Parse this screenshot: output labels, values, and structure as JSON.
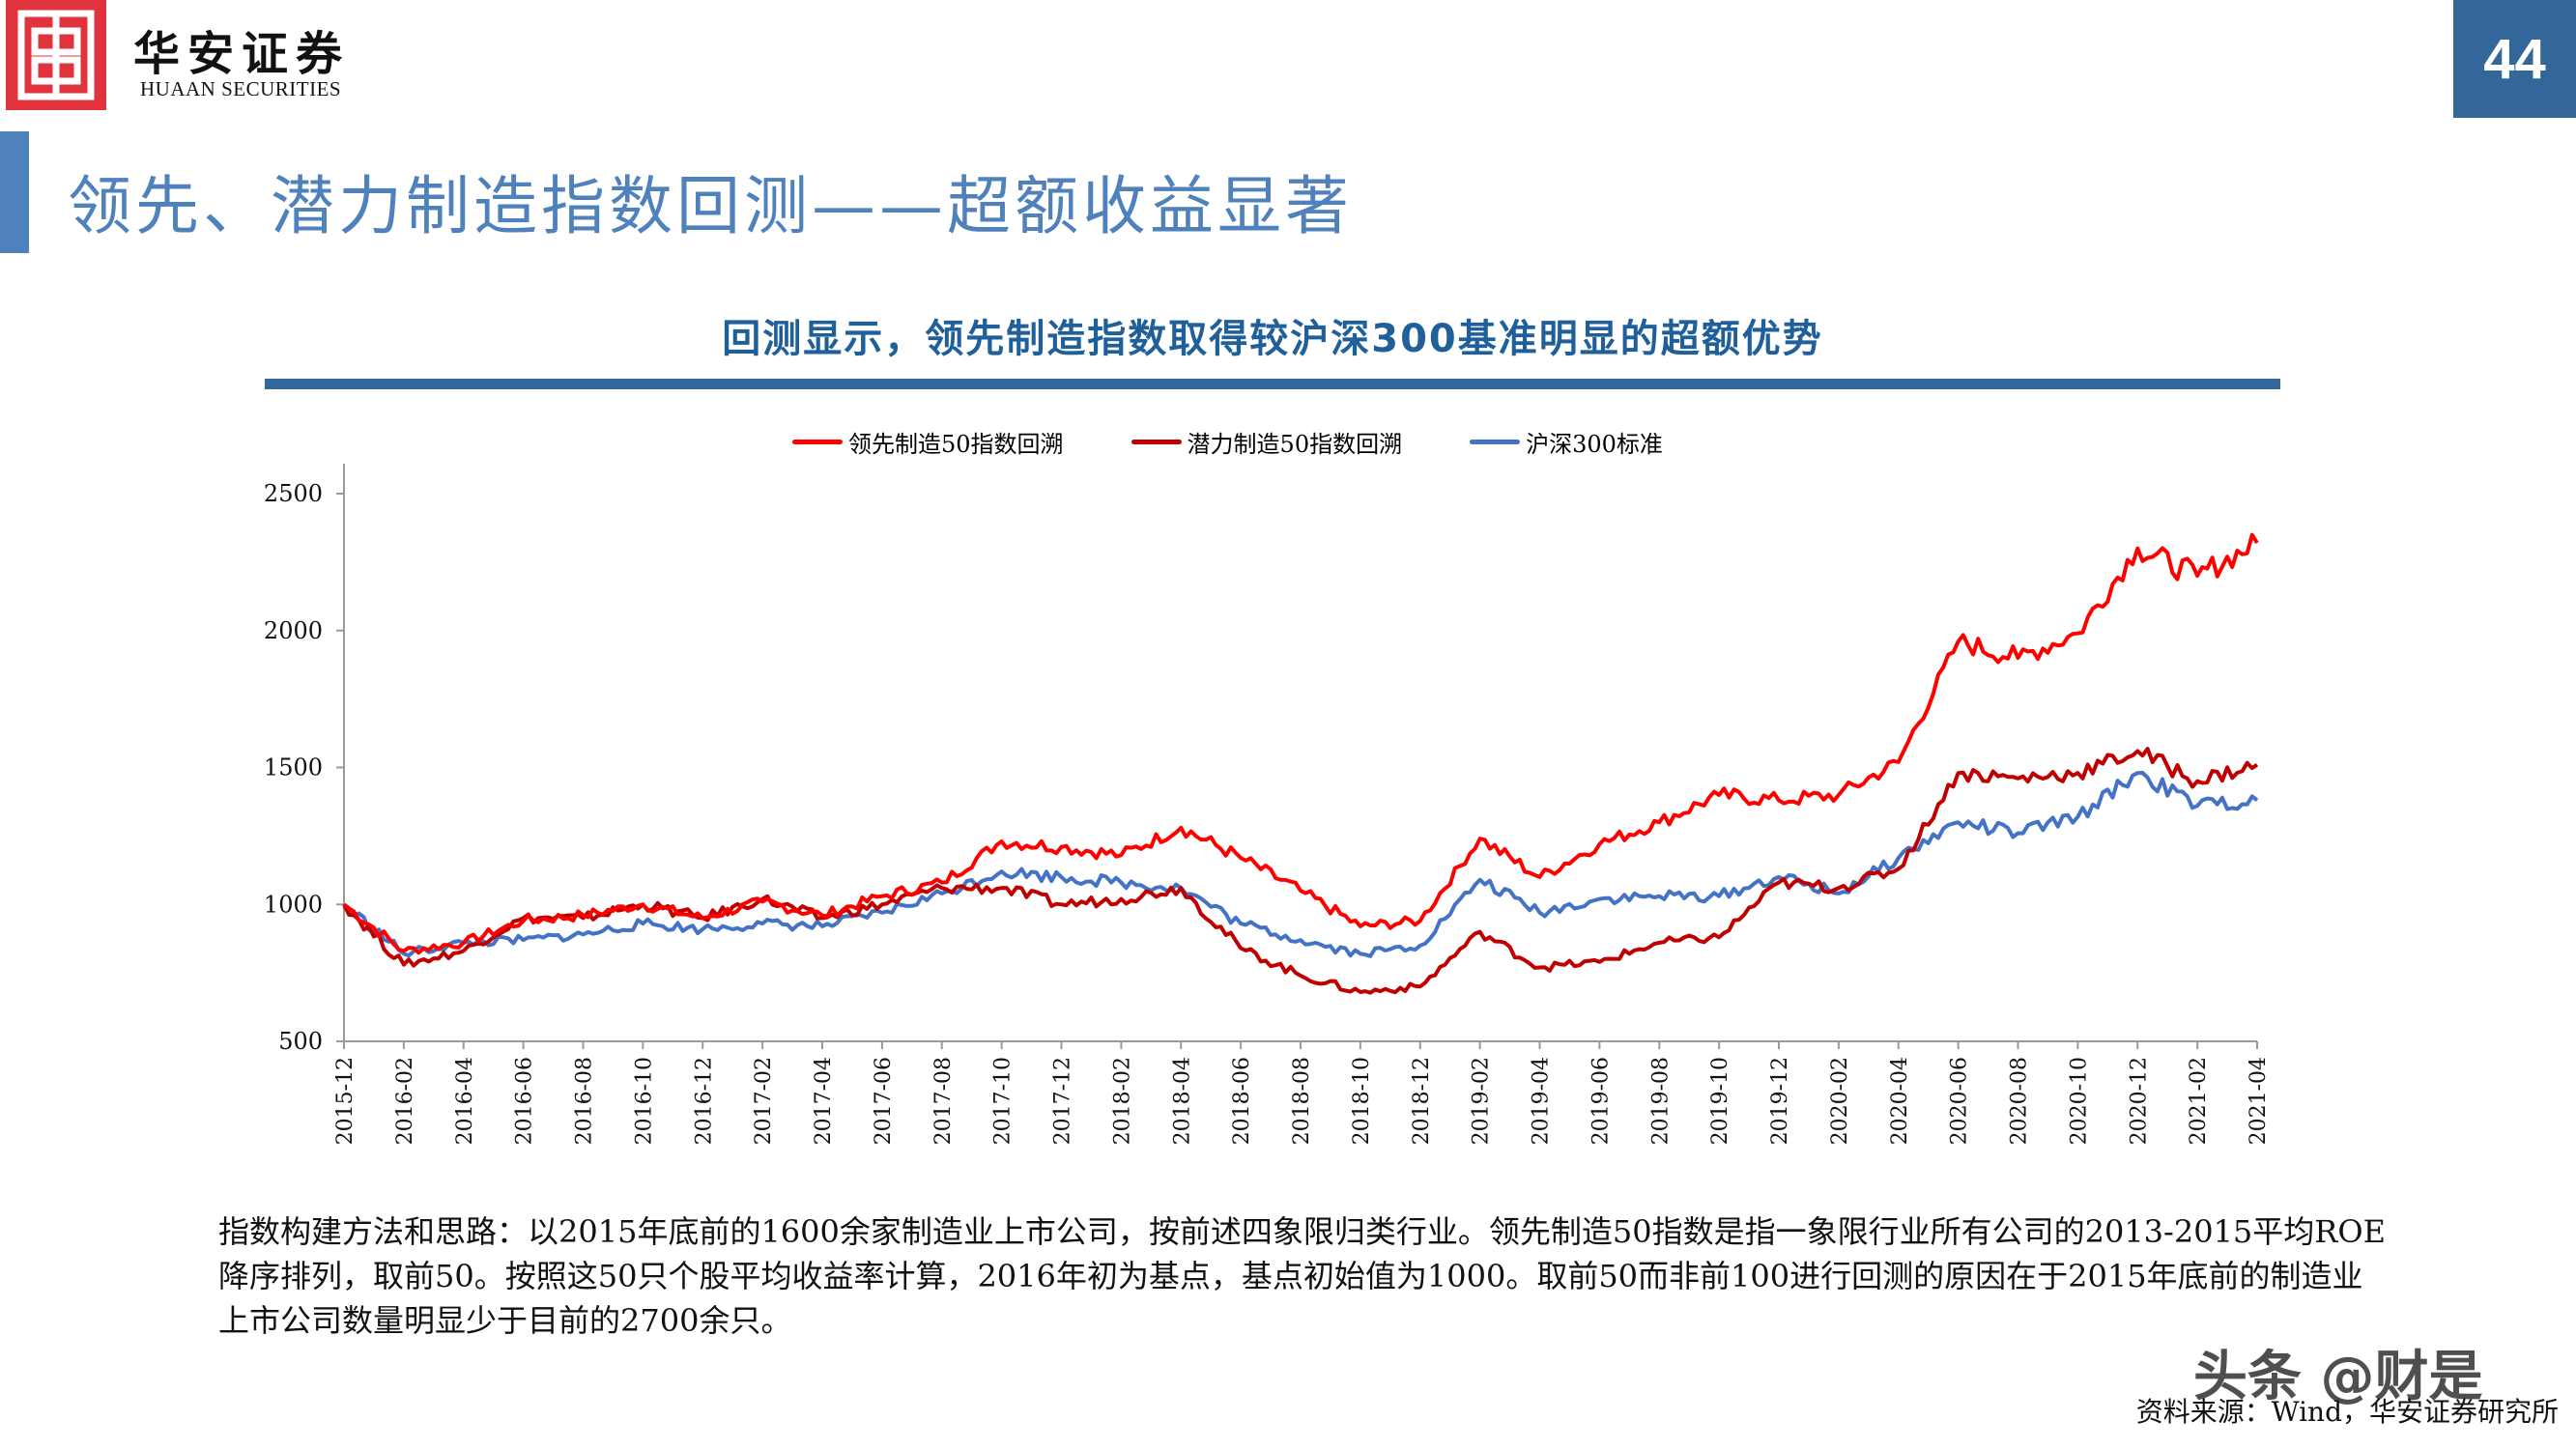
{
  "header": {
    "logo_cn": "华安证券",
    "logo_en": "HUAAN SECURITIES",
    "page_number": "44",
    "page_title": "领先、潜力制造指数回测——超额收益显著"
  },
  "chart": {
    "title": "回测显示，领先制造指数取得较沪深300基准明显的超额优势"
  },
  "colors": {
    "brand_red": "#e0333e",
    "title_blue": "#4f81bd",
    "page_num_bg": "#336699",
    "leading": "#ff0000",
    "potential": "#c00000",
    "csi300": "#4472c4"
  },
  "chart_data": {
    "type": "line",
    "title": "回测显示，领先制造指数取得较沪深300基准明显的超额优势",
    "xlabel": "",
    "ylabel": "",
    "ylim": [
      500,
      2500
    ],
    "yticks": [
      500,
      1000,
      1500,
      2000,
      2500
    ],
    "grid": false,
    "legend_position": "top",
    "categories": [
      "2015-12",
      "2016-02",
      "2016-04",
      "2016-06",
      "2016-08",
      "2016-10",
      "2016-12",
      "2017-02",
      "2017-04",
      "2017-06",
      "2017-08",
      "2017-10",
      "2017-12",
      "2018-02",
      "2018-04",
      "2018-06",
      "2018-08",
      "2018-10",
      "2018-12",
      "2019-02",
      "2019-04",
      "2019-06",
      "2019-08",
      "2019-10",
      "2019-12",
      "2020-02",
      "2020-04",
      "2020-06",
      "2020-08",
      "2020-10",
      "2020-12",
      "2021-02",
      "2021-04"
    ],
    "series": [
      {
        "name": "领先制造50指数回溯",
        "color": "#ff0000",
        "values": [
          1000,
          830,
          860,
          940,
          960,
          1000,
          950,
          1010,
          960,
          1030,
          1080,
          1230,
          1210,
          1180,
          1280,
          1170,
          1050,
          920,
          940,
          1240,
          1100,
          1220,
          1300,
          1400,
          1380,
          1400,
          1520,
          1960,
          1900,
          1990,
          2300,
          2200,
          2320
        ]
      },
      {
        "name": "潜力制造50指数回溯",
        "color": "#c00000",
        "values": [
          1000,
          780,
          830,
          950,
          950,
          1000,
          950,
          1020,
          950,
          1000,
          1060,
          1060,
          1000,
          1020,
          1060,
          840,
          740,
          680,
          700,
          900,
          770,
          790,
          860,
          880,
          1080,
          1060,
          1130,
          1480,
          1460,
          1480,
          1560,
          1450,
          1510
        ]
      },
      {
        "name": "沪深300标准",
        "color": "#4472c4",
        "values": [
          1000,
          820,
          860,
          870,
          890,
          930,
          910,
          930,
          920,
          970,
          1040,
          1120,
          1100,
          1080,
          1060,
          930,
          870,
          820,
          850,
          1090,
          970,
          1020,
          1030,
          1030,
          1100,
          1040,
          1170,
          1300,
          1260,
          1320,
          1480,
          1360,
          1380
        ]
      }
    ]
  },
  "legend": {
    "items": [
      {
        "label": "领先制造50指数回溯",
        "color": "#ff0000"
      },
      {
        "label": "潜力制造50指数回溯",
        "color": "#c00000"
      },
      {
        "label": "沪深300标准",
        "color": "#4472c4"
      }
    ]
  },
  "note": {
    "text": "指数构建方法和思路：以2015年底前的1600余家制造业上市公司，按前述四象限归类行业。领先制造50指数是指一象限行业所有公司的2013-2015平均ROE降序排列，取前50。按照这50只个股平均收益率计算，2016年初为基点，基点初始值为1000。取前50而非前100进行回测的原因在于2015年底前的制造业上市公司数量明显少于目前的2700余只。"
  },
  "footer": {
    "source": "资料来源：Wind，华安证券研究所",
    "watermark": "头条 @财是"
  }
}
